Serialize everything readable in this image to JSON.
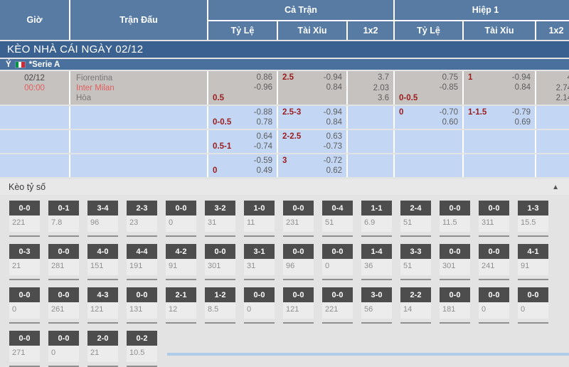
{
  "colors": {
    "header_blue": "#587ba4",
    "banner_blue": "#3a618f",
    "league_blue": "#4a709d",
    "row_gray": "#c6c2bf",
    "row_blue": "#c3d7f4",
    "accent_red": "#e05f5f",
    "line_maroon": "#9b1c1c",
    "score_head_gray": "#4d4d4d"
  },
  "header": {
    "time": "Giờ",
    "match": "Trận Đấu",
    "full_match": "Cả Trận",
    "first_half": "Hiệp 1",
    "sub": {
      "handicap": "Tỷ Lệ",
      "over_under": "Tài Xỉu",
      "one_x_two": "1x2"
    }
  },
  "banner": "KÈO NHÀ CÁI NGÀY 02/12",
  "league": {
    "country": "Ý",
    "flag": "italy-flag-icon",
    "name": "*Serie A"
  },
  "match": {
    "date": "02/12",
    "time": "00:00",
    "teams": [
      "Fiorentina",
      "Inter Milan",
      "Hòa"
    ]
  },
  "odds_rows": [
    {
      "ft_handicap": {
        "line": "0.5",
        "pos": "bottom",
        "values": [
          "0.86",
          "-0.96"
        ]
      },
      "ft_over_under": {
        "line": "2.5",
        "pos": "top",
        "values": [
          "-0.94",
          "0.84"
        ]
      },
      "ft_1x2": [
        "3.7",
        "2.03",
        "3.6"
      ],
      "h1_handicap": {
        "line": "0-0.5",
        "pos": "bottom",
        "values": [
          "0.75",
          "-0.85"
        ]
      },
      "h1_over_under": {
        "line": "1",
        "pos": "top",
        "values": [
          "-0.94",
          "0.84"
        ]
      },
      "h1_1x2": [
        "4",
        "2.74",
        "2.14"
      ]
    },
    {
      "ft_handicap": {
        "line": "0-0.5",
        "pos": "bottom",
        "values": [
          "-0.88",
          "0.78"
        ]
      },
      "ft_over_under": {
        "line": "2.5-3",
        "pos": "top",
        "values": [
          "-0.94",
          "0.84"
        ]
      },
      "ft_1x2": [],
      "h1_handicap": {
        "line": "0",
        "pos": "top",
        "values": [
          "-0.70",
          "0.60"
        ]
      },
      "h1_over_under": {
        "line": "1-1.5",
        "pos": "top",
        "values": [
          "-0.79",
          "0.69"
        ]
      },
      "h1_1x2": []
    },
    {
      "ft_handicap": {
        "line": "0.5-1",
        "pos": "bottom",
        "values": [
          "0.64",
          "-0.74"
        ]
      },
      "ft_over_under": {
        "line": "2-2.5",
        "pos": "top",
        "values": [
          "0.63",
          "-0.73"
        ]
      },
      "ft_1x2": [],
      "h1_handicap": null,
      "h1_over_under": null,
      "h1_1x2": []
    },
    {
      "ft_handicap": {
        "line": "0",
        "pos": "bottom",
        "values": [
          "-0.59",
          "0.49"
        ]
      },
      "ft_over_under": {
        "line": "3",
        "pos": "top",
        "values": [
          "-0.72",
          "0.62"
        ]
      },
      "ft_1x2": [],
      "h1_handicap": null,
      "h1_over_under": null,
      "h1_1x2": []
    }
  ],
  "score_section": {
    "title": "Kèo tỷ số",
    "collapse_icon": "▲",
    "rows": [
      [
        {
          "score": "0-0",
          "value": "221"
        },
        {
          "score": "0-1",
          "value": "7.8"
        },
        {
          "score": "3-4",
          "value": "96"
        },
        {
          "score": "2-3",
          "value": "23"
        },
        {
          "score": "0-0",
          "value": "0"
        },
        {
          "score": "3-2",
          "value": "31"
        },
        {
          "score": "1-0",
          "value": "11"
        },
        {
          "score": "0-0",
          "value": "231"
        },
        {
          "score": "0-4",
          "value": "51"
        },
        {
          "score": "1-1",
          "value": "6.9"
        },
        {
          "score": "2-4",
          "value": "51"
        },
        {
          "score": "0-0",
          "value": "11.5"
        },
        {
          "score": "0-0",
          "value": "311"
        },
        {
          "score": "1-3",
          "value": "15.5"
        }
      ],
      [
        {
          "score": "0-3",
          "value": "21"
        },
        {
          "score": "0-0",
          "value": "281"
        },
        {
          "score": "4-0",
          "value": "151"
        },
        {
          "score": "4-4",
          "value": "191"
        },
        {
          "score": "4-2",
          "value": "91"
        },
        {
          "score": "0-0",
          "value": "301"
        },
        {
          "score": "3-1",
          "value": "31"
        },
        {
          "score": "0-0",
          "value": "96"
        },
        {
          "score": "0-0",
          "value": "0"
        },
        {
          "score": "1-4",
          "value": "36"
        },
        {
          "score": "3-3",
          "value": "51"
        },
        {
          "score": "0-0",
          "value": "301"
        },
        {
          "score": "0-0",
          "value": "241"
        },
        {
          "score": "4-1",
          "value": "91"
        }
      ],
      [
        {
          "score": "0-0",
          "value": "0"
        },
        {
          "score": "0-0",
          "value": "261"
        },
        {
          "score": "4-3",
          "value": "121"
        },
        {
          "score": "0-0",
          "value": "131"
        },
        {
          "score": "2-1",
          "value": "12"
        },
        {
          "score": "1-2",
          "value": "8.5"
        },
        {
          "score": "0-0",
          "value": "0"
        },
        {
          "score": "0-0",
          "value": "121"
        },
        {
          "score": "0-0",
          "value": "221"
        },
        {
          "score": "3-0",
          "value": "56"
        },
        {
          "score": "2-2",
          "value": "14"
        },
        {
          "score": "0-0",
          "value": "181"
        },
        {
          "score": "0-0",
          "value": "0"
        },
        {
          "score": "0-0",
          "value": "0"
        }
      ],
      [
        {
          "score": "0-0",
          "value": "271"
        },
        {
          "score": "0-0",
          "value": "0"
        },
        {
          "score": "2-0",
          "value": "21"
        },
        {
          "score": "0-2",
          "value": "10.5"
        }
      ]
    ]
  }
}
